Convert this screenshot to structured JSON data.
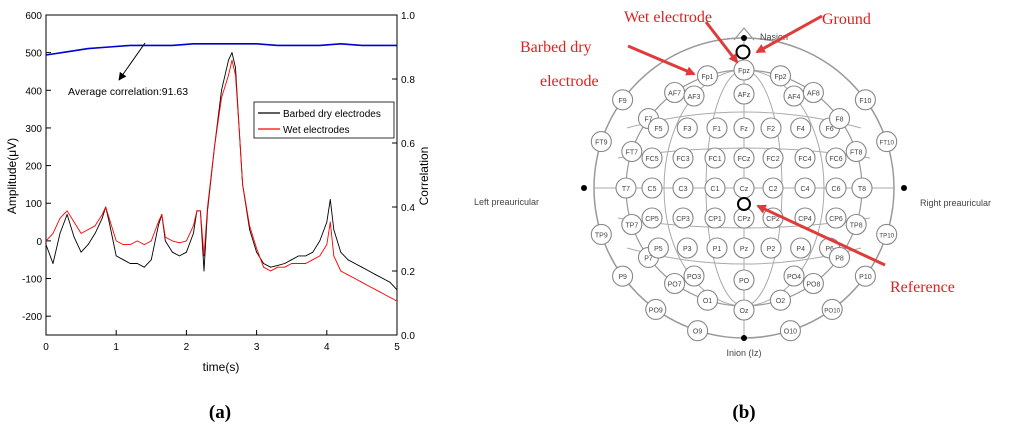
{
  "chart_data": [
    {
      "panel_label": "(a)",
      "type": "line",
      "xlabel": "time(s)",
      "ylabel": "Amplitude(μV)",
      "y2label": "Correlation",
      "xlim": [
        0,
        5
      ],
      "ylim": [
        -250,
        600
      ],
      "y2lim": [
        0.0,
        1.0
      ],
      "xticks": [
        "0",
        "1",
        "2",
        "3",
        "4",
        "5"
      ],
      "yticks": [
        "-200",
        "-100",
        "0",
        "100",
        "200",
        "300",
        "400",
        "500",
        "600"
      ],
      "y2ticks": [
        "0.0",
        "0.2",
        "0.4",
        "0.6",
        "0.8",
        "1.0"
      ],
      "legend_position": "right-middle",
      "annotation": "Average correlation:91.63",
      "series": [
        {
          "name": "Barbed dry electrodes",
          "color": "#000000",
          "axis": "left",
          "x": [
            0,
            0.1,
            0.2,
            0.3,
            0.4,
            0.5,
            0.6,
            0.7,
            0.8,
            0.85,
            0.9,
            1.0,
            1.1,
            1.2,
            1.3,
            1.4,
            1.5,
            1.6,
            1.65,
            1.7,
            1.8,
            1.9,
            2.0,
            2.1,
            2.15,
            2.2,
            2.25,
            2.3,
            2.4,
            2.5,
            2.6,
            2.65,
            2.7,
            2.75,
            2.8,
            2.9,
            3.0,
            3.1,
            3.2,
            3.3,
            3.4,
            3.5,
            3.6,
            3.7,
            3.8,
            3.9,
            4.0,
            4.05,
            4.1,
            4.2,
            4.3,
            4.4,
            4.5,
            4.6,
            4.7,
            4.8,
            4.9,
            5.0
          ],
          "y": [
            -10,
            -60,
            20,
            70,
            10,
            -30,
            -10,
            20,
            60,
            90,
            50,
            -40,
            -50,
            -60,
            -60,
            -70,
            -50,
            40,
            70,
            0,
            -30,
            -40,
            -30,
            20,
            80,
            80,
            -80,
            80,
            250,
            400,
            480,
            500,
            460,
            300,
            150,
            30,
            -30,
            -60,
            -70,
            -65,
            -60,
            -50,
            -40,
            -40,
            -30,
            0,
            50,
            110,
            30,
            -30,
            -50,
            -60,
            -70,
            -80,
            -90,
            -100,
            -110,
            -130
          ]
        },
        {
          "name": "Wet electrodes",
          "color": "#ff0000",
          "axis": "left",
          "x": [
            0,
            0.1,
            0.2,
            0.3,
            0.4,
            0.5,
            0.6,
            0.7,
            0.8,
            0.85,
            0.9,
            1.0,
            1.1,
            1.2,
            1.3,
            1.4,
            1.5,
            1.6,
            1.65,
            1.7,
            1.8,
            1.9,
            2.0,
            2.1,
            2.15,
            2.2,
            2.25,
            2.3,
            2.4,
            2.5,
            2.6,
            2.65,
            2.7,
            2.75,
            2.8,
            2.9,
            3.0,
            3.1,
            3.2,
            3.3,
            3.4,
            3.5,
            3.6,
            3.7,
            3.8,
            3.9,
            4.0,
            4.05,
            4.1,
            4.2,
            4.3,
            4.4,
            4.5,
            4.6,
            4.7,
            4.8,
            4.9,
            5.0
          ],
          "y": [
            0,
            20,
            60,
            80,
            50,
            20,
            30,
            40,
            70,
            90,
            60,
            0,
            -10,
            -10,
            0,
            -10,
            0,
            50,
            70,
            10,
            0,
            -5,
            0,
            40,
            80,
            80,
            -40,
            90,
            250,
            380,
            440,
            480,
            440,
            300,
            150,
            40,
            -20,
            -70,
            -80,
            -70,
            -70,
            -60,
            -60,
            -60,
            -50,
            -40,
            -10,
            50,
            -40,
            -80,
            -90,
            -100,
            -110,
            -120,
            -130,
            -140,
            -150,
            -160
          ]
        },
        {
          "name": "Correlation",
          "color": "#0000cc",
          "axis": "right",
          "x": [
            0,
            0.3,
            0.6,
            0.9,
            1.2,
            1.5,
            1.8,
            2.1,
            2.4,
            2.7,
            3.0,
            3.3,
            3.6,
            3.9,
            4.2,
            4.5,
            4.8,
            5.0
          ],
          "y": [
            0.875,
            0.885,
            0.895,
            0.9,
            0.905,
            0.905,
            0.905,
            0.91,
            0.91,
            0.91,
            0.91,
            0.905,
            0.905,
            0.905,
            0.91,
            0.905,
            0.905,
            0.905
          ]
        }
      ]
    },
    {
      "panel_label": "(b)",
      "type": "diagram",
      "annotations": {
        "wet": "Wet electrode",
        "ground": "Ground",
        "barbed1": "Barbed dry",
        "barbed2": "electrode",
        "reference": "Reference"
      },
      "landmarks": {
        "nasion": "Nasion",
        "inion": "Inion (Iz)",
        "left": "Left preauricular",
        "right": "Right preauricular"
      },
      "electrodes": [
        "Fp1",
        "Fpz",
        "Fp2",
        "AF7",
        "AF3",
        "AFz",
        "AF4",
        "AF8",
        "F9",
        "F7",
        "F5",
        "F3",
        "F1",
        "Fz",
        "F2",
        "F4",
        "F6",
        "F8",
        "F10",
        "FT9",
        "FT7",
        "FC5",
        "FC3",
        "FC1",
        "FCz",
        "FC2",
        "FC4",
        "FC6",
        "FT8",
        "FT10",
        "T7",
        "C5",
        "C3",
        "C1",
        "Cz",
        "C2",
        "C4",
        "C6",
        "T8",
        "TP9",
        "TP7",
        "CP5",
        "CP3",
        "CP1",
        "CPz",
        "CP2",
        "CP4",
        "CP6",
        "TP8",
        "TP10",
        "P9",
        "P7",
        "P5",
        "P3",
        "P1",
        "Pz",
        "P2",
        "P4",
        "P6",
        "P8",
        "P10",
        "PO7",
        "PO3",
        "PO",
        "PO4",
        "PO8",
        "PO9",
        "O1",
        "Oz",
        "O2",
        "PO10",
        "O9",
        "O10"
      ]
    }
  ]
}
